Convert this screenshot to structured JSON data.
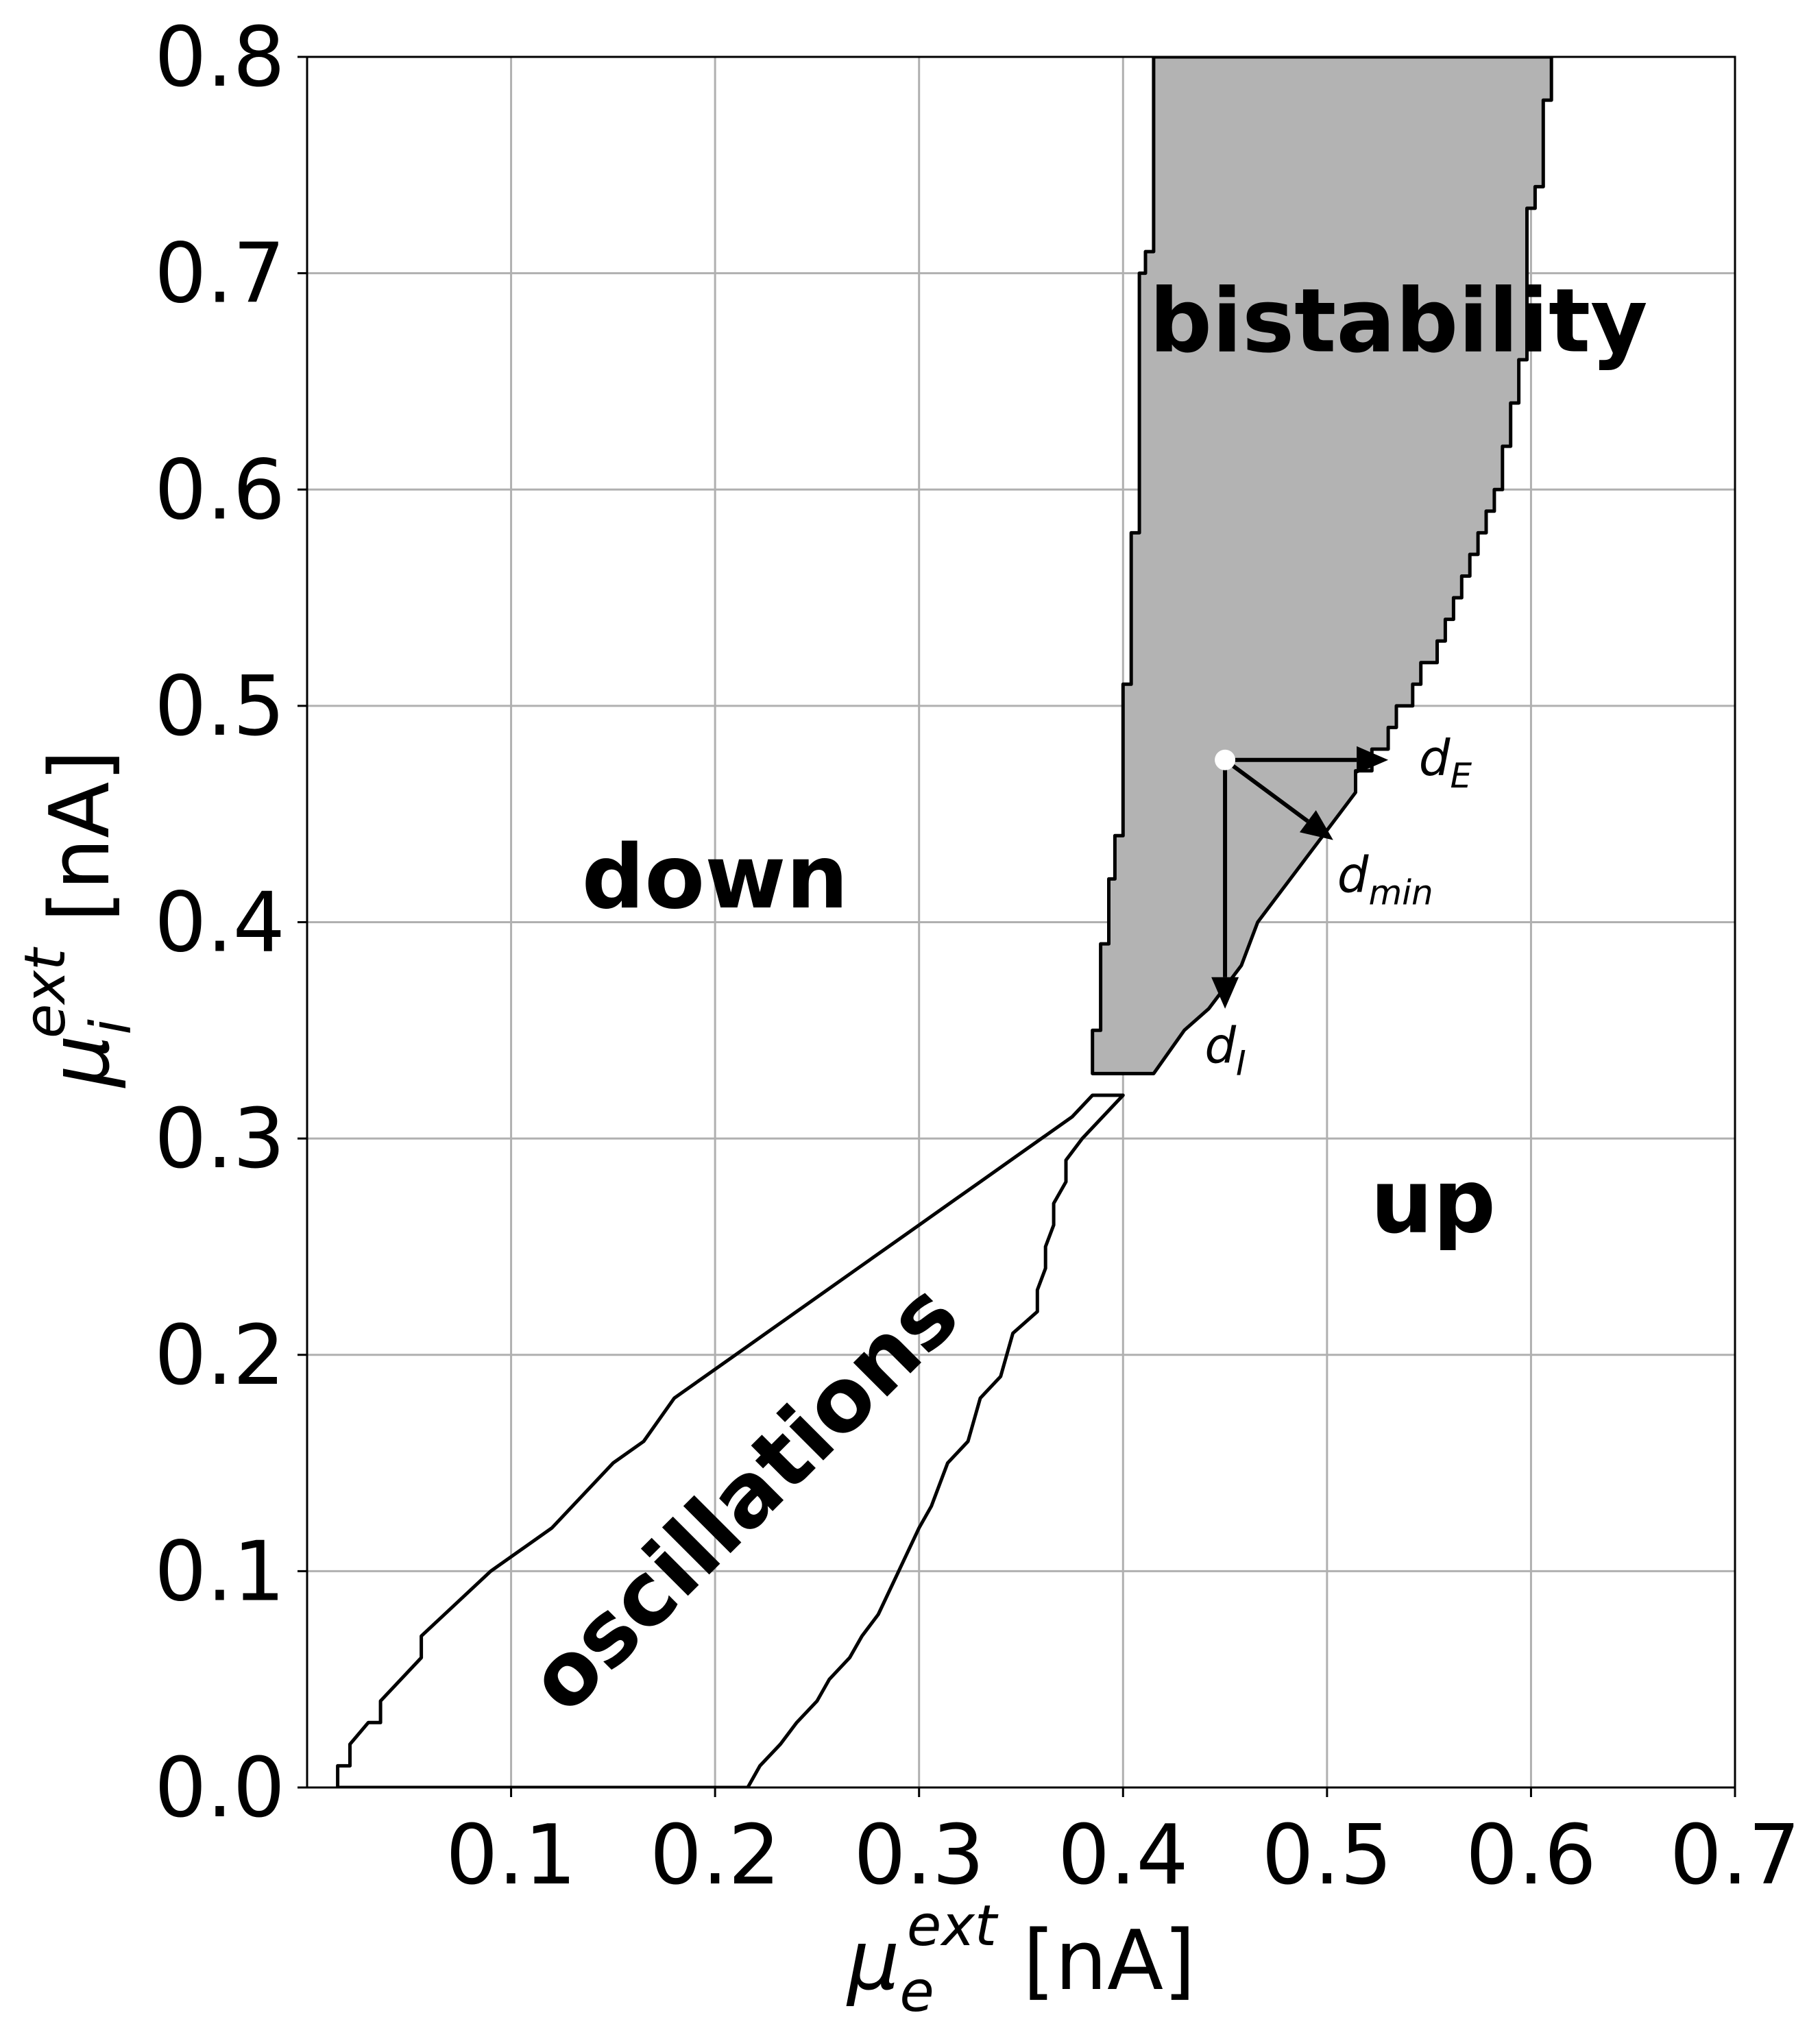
{
  "chart_data": {
    "type": "phase-diagram",
    "xlim": [
      0.0,
      0.7
    ],
    "ylim": [
      0.0,
      0.8
    ],
    "grid": true,
    "x_ticks": [
      {
        "v": 0.1,
        "label": "0.1"
      },
      {
        "v": 0.2,
        "label": "0.2"
      },
      {
        "v": 0.3,
        "label": "0.3"
      },
      {
        "v": 0.4,
        "label": "0.4"
      },
      {
        "v": 0.5,
        "label": "0.5"
      },
      {
        "v": 0.6,
        "label": "0.6"
      },
      {
        "v": 0.7,
        "label": "0.7"
      }
    ],
    "y_ticks": [
      {
        "v": 0.0,
        "label": "0.0"
      },
      {
        "v": 0.1,
        "label": "0.1"
      },
      {
        "v": 0.2,
        "label": "0.2"
      },
      {
        "v": 0.3,
        "label": "0.3"
      },
      {
        "v": 0.4,
        "label": "0.4"
      },
      {
        "v": 0.5,
        "label": "0.5"
      },
      {
        "v": 0.6,
        "label": "0.6"
      },
      {
        "v": 0.7,
        "label": "0.7"
      },
      {
        "v": 0.8,
        "label": "0.8"
      }
    ],
    "xlabel": {
      "symbol": "μ",
      "sub": "e",
      "sup": "ext",
      "unit": " [nA]"
    },
    "ylabel": {
      "symbol": "μ",
      "sub": "i",
      "sup": "ext",
      "unit": " [nA]"
    },
    "regions": [
      {
        "name": "bistability",
        "fill": "#b3b3b3",
        "boundary": [
          [
            0.385,
            0.33
          ],
          [
            0.385,
            0.35
          ],
          [
            0.389,
            0.35
          ],
          [
            0.389,
            0.39
          ],
          [
            0.393,
            0.39
          ],
          [
            0.393,
            0.42
          ],
          [
            0.396,
            0.42
          ],
          [
            0.396,
            0.44
          ],
          [
            0.4,
            0.44
          ],
          [
            0.4,
            0.51
          ],
          [
            0.404,
            0.51
          ],
          [
            0.404,
            0.58
          ],
          [
            0.408,
            0.58
          ],
          [
            0.408,
            0.7
          ],
          [
            0.411,
            0.7
          ],
          [
            0.411,
            0.71
          ],
          [
            0.415,
            0.71
          ],
          [
            0.415,
            0.8
          ],
          [
            0.61,
            0.8
          ],
          [
            0.61,
            0.78
          ],
          [
            0.606,
            0.78
          ],
          [
            0.606,
            0.74
          ],
          [
            0.602,
            0.74
          ],
          [
            0.602,
            0.73
          ],
          [
            0.598,
            0.73
          ],
          [
            0.598,
            0.66
          ],
          [
            0.594,
            0.66
          ],
          [
            0.594,
            0.64
          ],
          [
            0.59,
            0.64
          ],
          [
            0.59,
            0.62
          ],
          [
            0.586,
            0.62
          ],
          [
            0.586,
            0.6
          ],
          [
            0.582,
            0.6
          ],
          [
            0.582,
            0.59
          ],
          [
            0.578,
            0.59
          ],
          [
            0.578,
            0.58
          ],
          [
            0.574,
            0.58
          ],
          [
            0.574,
            0.57
          ],
          [
            0.57,
            0.57
          ],
          [
            0.57,
            0.56
          ],
          [
            0.566,
            0.56
          ],
          [
            0.566,
            0.55
          ],
          [
            0.562,
            0.55
          ],
          [
            0.562,
            0.54
          ],
          [
            0.558,
            0.54
          ],
          [
            0.558,
            0.53
          ],
          [
            0.554,
            0.53
          ],
          [
            0.554,
            0.52
          ],
          [
            0.546,
            0.52
          ],
          [
            0.546,
            0.51
          ],
          [
            0.542,
            0.51
          ],
          [
            0.542,
            0.5
          ],
          [
            0.534,
            0.5
          ],
          [
            0.534,
            0.49
          ],
          [
            0.53,
            0.49
          ],
          [
            0.53,
            0.48
          ],
          [
            0.522,
            0.48
          ],
          [
            0.522,
            0.47
          ],
          [
            0.514,
            0.47
          ],
          [
            0.514,
            0.46
          ],
          [
            0.506,
            0.45
          ],
          [
            0.498,
            0.44
          ],
          [
            0.49,
            0.43
          ],
          [
            0.482,
            0.42
          ],
          [
            0.474,
            0.41
          ],
          [
            0.466,
            0.4
          ],
          [
            0.458,
            0.38
          ],
          [
            0.45,
            0.37
          ],
          [
            0.442,
            0.36
          ],
          [
            0.43,
            0.35
          ],
          [
            0.415,
            0.33
          ],
          [
            0.385,
            0.33
          ]
        ]
      },
      {
        "name": "oscillations",
        "fill": "none",
        "boundary": [
          [
            0.015,
            0.0
          ],
          [
            0.015,
            0.01
          ],
          [
            0.021,
            0.01
          ],
          [
            0.021,
            0.02
          ],
          [
            0.03,
            0.03
          ],
          [
            0.036,
            0.03
          ],
          [
            0.036,
            0.04
          ],
          [
            0.056,
            0.06
          ],
          [
            0.056,
            0.07
          ],
          [
            0.09,
            0.1
          ],
          [
            0.12,
            0.12
          ],
          [
            0.15,
            0.15
          ],
          [
            0.165,
            0.16
          ],
          [
            0.18,
            0.18
          ],
          [
            0.195,
            0.19
          ],
          [
            0.21,
            0.2
          ],
          [
            0.225,
            0.21
          ],
          [
            0.24,
            0.22
          ],
          [
            0.255,
            0.23
          ],
          [
            0.27,
            0.24
          ],
          [
            0.285,
            0.25
          ],
          [
            0.3,
            0.26
          ],
          [
            0.315,
            0.27
          ],
          [
            0.33,
            0.28
          ],
          [
            0.345,
            0.29
          ],
          [
            0.36,
            0.3
          ],
          [
            0.375,
            0.31
          ],
          [
            0.385,
            0.32
          ],
          [
            0.4,
            0.32
          ],
          [
            0.38,
            0.3
          ],
          [
            0.372,
            0.29
          ],
          [
            0.372,
            0.28
          ],
          [
            0.366,
            0.27
          ],
          [
            0.366,
            0.26
          ],
          [
            0.362,
            0.25
          ],
          [
            0.362,
            0.24
          ],
          [
            0.358,
            0.23
          ],
          [
            0.358,
            0.22
          ],
          [
            0.346,
            0.21
          ],
          [
            0.34,
            0.19
          ],
          [
            0.33,
            0.18
          ],
          [
            0.324,
            0.16
          ],
          [
            0.314,
            0.15
          ],
          [
            0.306,
            0.13
          ],
          [
            0.3,
            0.12
          ],
          [
            0.29,
            0.1
          ],
          [
            0.28,
            0.08
          ],
          [
            0.272,
            0.07
          ],
          [
            0.266,
            0.06
          ],
          [
            0.256,
            0.05
          ],
          [
            0.25,
            0.04
          ],
          [
            0.24,
            0.03
          ],
          [
            0.232,
            0.02
          ],
          [
            0.222,
            0.01
          ],
          [
            0.216,
            0.0
          ]
        ]
      }
    ],
    "labels": [
      {
        "text": "bistability",
        "x": 0.535,
        "y": 0.675,
        "rotate": 0
      },
      {
        "text": "down",
        "x": 0.2,
        "y": 0.418,
        "rotate": 0
      },
      {
        "text": "up",
        "x": 0.552,
        "y": 0.268,
        "rotate": 0
      },
      {
        "text": "oscillations",
        "x": 0.216,
        "y": 0.132,
        "rotate": -45
      }
    ],
    "point": {
      "x": 0.45,
      "y": 0.475,
      "color": "#ffffff"
    },
    "vectors": [
      {
        "label": "d",
        "sub": "E",
        "to": [
          0.53,
          0.475
        ],
        "label_at": [
          0.545,
          0.468
        ]
      },
      {
        "label": "d",
        "sub": "min",
        "to": [
          0.503,
          0.438
        ],
        "label_at": [
          0.505,
          0.414
        ]
      },
      {
        "label": "d",
        "sub": "I",
        "to": [
          0.45,
          0.36
        ],
        "label_at": [
          0.44,
          0.335
        ]
      }
    ]
  }
}
